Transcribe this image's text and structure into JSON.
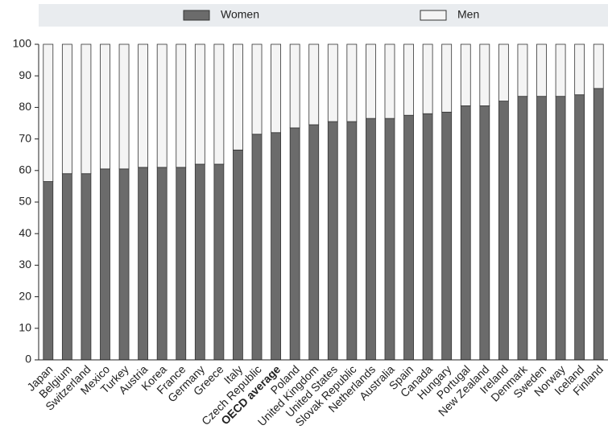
{
  "chart_data": {
    "type": "stacked_bar",
    "categories": [
      "Japan",
      "Belgium",
      "Switzerland",
      "Mexico",
      "Turkey",
      "Austria",
      "Korea",
      "France",
      "Germany",
      "Greece",
      "Italy",
      "Czech Republic",
      "OECD average",
      "Poland",
      "United Kingdom",
      "United States",
      "Slovak Republic",
      "Netherlands",
      "Australia",
      "Spain",
      "Canada",
      "Hungary",
      "Portugal",
      "New Zealand",
      "Ireland",
      "Denmark",
      "Sweden",
      "Norway",
      "Iceland",
      "Finland"
    ],
    "bold_categories": [
      12
    ],
    "series": [
      {
        "name": "Women",
        "color": "#6b6b6b",
        "values": [
          56.5,
          59,
          59,
          60.5,
          60.5,
          61,
          61,
          61,
          62,
          62,
          66.5,
          71.5,
          72,
          73.5,
          74.5,
          75.5,
          75.5,
          76.5,
          76.5,
          77.5,
          78,
          78.5,
          80.5,
          80.5,
          82,
          83.5,
          83.5,
          83.5,
          84,
          86
        ]
      },
      {
        "name": "Men",
        "color": "#f4f4f4",
        "values": [
          43.5,
          41,
          41,
          39.5,
          39.5,
          39,
          39,
          39,
          38,
          38,
          33.5,
          28.5,
          28,
          26.5,
          25.5,
          24.5,
          24.5,
          23.5,
          23.5,
          22.5,
          22,
          21.5,
          19.5,
          19.5,
          18,
          16.5,
          16.5,
          16.5,
          16,
          14
        ]
      }
    ],
    "ylim": [
      0,
      100
    ],
    "yticks": [
      0,
      10,
      20,
      30,
      40,
      50,
      60,
      70,
      80,
      90,
      100
    ],
    "grid": false
  }
}
